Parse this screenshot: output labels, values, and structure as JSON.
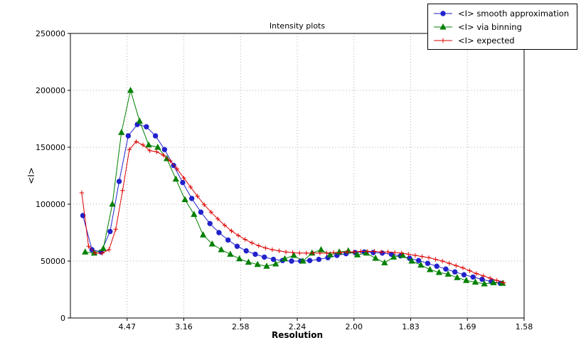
{
  "chart_data": {
    "type": "line",
    "title": "Intensity plots",
    "xlabel": "Resolution",
    "ylabel": "<I>",
    "grid": true,
    "grid_color": "#b0b0b0",
    "legend_position": "top-right",
    "xlim": [
      0.0,
      0.4
    ],
    "ylim": [
      0,
      250000
    ],
    "x_axis_note": "ticks linear in 1/d^2, labels are resolution d in Angstrom",
    "x_ticks": [
      {
        "pos": 0.05,
        "label": "4.47"
      },
      {
        "pos": 0.1,
        "label": "3.16"
      },
      {
        "pos": 0.15,
        "label": "2.58"
      },
      {
        "pos": 0.2,
        "label": "2.24"
      },
      {
        "pos": 0.25,
        "label": "2.00"
      },
      {
        "pos": 0.3,
        "label": "1.83"
      },
      {
        "pos": 0.35,
        "label": "1.69"
      },
      {
        "pos": 0.4,
        "label": "1.58"
      }
    ],
    "y_ticks": [
      {
        "value": 0,
        "label": "0"
      },
      {
        "value": 50000,
        "label": "50000"
      },
      {
        "value": 100000,
        "label": "100000"
      },
      {
        "value": 150000,
        "label": "150000"
      },
      {
        "value": 200000,
        "label": "200000"
      },
      {
        "value": 250000,
        "label": "250000"
      }
    ],
    "series": [
      {
        "name": "<I> smooth approximation",
        "color": "#2222cc",
        "marker": "circle",
        "x": [
          0.011,
          0.019,
          0.027,
          0.035,
          0.043,
          0.051,
          0.059,
          0.067,
          0.075,
          0.083,
          0.091,
          0.099,
          0.107,
          0.115,
          0.123,
          0.131,
          0.139,
          0.147,
          0.155,
          0.163,
          0.171,
          0.179,
          0.187,
          0.195,
          0.203,
          0.211,
          0.219,
          0.227,
          0.235,
          0.243,
          0.251,
          0.259,
          0.267,
          0.275,
          0.283,
          0.291,
          0.299,
          0.307,
          0.315,
          0.323,
          0.331,
          0.339,
          0.347,
          0.355,
          0.363,
          0.371,
          0.379
        ],
        "values": [
          90000,
          60000,
          58000,
          76000,
          120000,
          160000,
          170000,
          168000,
          160000,
          148000,
          134000,
          119000,
          105000,
          93000,
          83000,
          75000,
          68500,
          63000,
          59000,
          56000,
          53500,
          51500,
          50500,
          50000,
          50000,
          50500,
          51500,
          53000,
          55000,
          56500,
          57500,
          58000,
          57500,
          57000,
          56000,
          54500,
          52500,
          50500,
          48000,
          45500,
          43000,
          40500,
          38000,
          36000,
          34000,
          32000,
          30500
        ]
      },
      {
        "name": "<I> via binning",
        "color": "#008000",
        "marker": "triangle-up",
        "x": [
          0.013,
          0.021,
          0.029,
          0.037,
          0.045,
          0.053,
          0.061,
          0.069,
          0.077,
          0.085,
          0.093,
          0.101,
          0.109,
          0.117,
          0.125,
          0.133,
          0.141,
          0.149,
          0.157,
          0.165,
          0.173,
          0.181,
          0.189,
          0.197,
          0.205,
          0.213,
          0.221,
          0.229,
          0.237,
          0.245,
          0.253,
          0.261,
          0.269,
          0.277,
          0.285,
          0.293,
          0.301,
          0.309,
          0.317,
          0.325,
          0.333,
          0.341,
          0.349,
          0.357,
          0.365,
          0.373,
          0.381
        ],
        "values": [
          58000,
          57000,
          61000,
          100000,
          163000,
          200000,
          173000,
          152000,
          150000,
          140000,
          122000,
          104000,
          91000,
          73000,
          65000,
          60000,
          56000,
          52000,
          49000,
          47000,
          45500,
          47500,
          52000,
          55000,
          50000,
          57000,
          60000,
          55500,
          58000,
          59000,
          55500,
          57000,
          52500,
          48500,
          53500,
          55000,
          50000,
          46500,
          42500,
          40000,
          38500,
          35500,
          33000,
          31500,
          30000,
          31000,
          30500
        ]
      },
      {
        "name": "<I> expected",
        "color": "#dd0000",
        "marker": "plus",
        "x": [
          0.01,
          0.016,
          0.022,
          0.028,
          0.034,
          0.04,
          0.046,
          0.052,
          0.058,
          0.064,
          0.07,
          0.076,
          0.082,
          0.088,
          0.094,
          0.1,
          0.106,
          0.112,
          0.118,
          0.124,
          0.13,
          0.136,
          0.142,
          0.148,
          0.154,
          0.16,
          0.166,
          0.172,
          0.178,
          0.184,
          0.19,
          0.196,
          0.202,
          0.208,
          0.214,
          0.22,
          0.226,
          0.232,
          0.238,
          0.244,
          0.25,
          0.256,
          0.262,
          0.268,
          0.274,
          0.28,
          0.286,
          0.292,
          0.298,
          0.304,
          0.31,
          0.316,
          0.322,
          0.328,
          0.334,
          0.34,
          0.346,
          0.352,
          0.358,
          0.364,
          0.37,
          0.376,
          0.382
        ],
        "values": [
          110000,
          63000,
          57000,
          57000,
          60000,
          78000,
          112000,
          148000,
          155000,
          152000,
          147000,
          146000,
          143000,
          138000,
          131000,
          123000,
          115000,
          107000,
          99500,
          93000,
          87000,
          81500,
          76500,
          72500,
          69000,
          66000,
          63500,
          61500,
          60000,
          59000,
          58000,
          57500,
          57000,
          57000,
          57000,
          57000,
          57000,
          57500,
          57500,
          58000,
          58000,
          58500,
          58500,
          58500,
          58000,
          58000,
          57500,
          57000,
          56000,
          55000,
          54000,
          53000,
          51500,
          50000,
          48000,
          46000,
          44000,
          41500,
          39000,
          37000,
          35000,
          33000,
          31000
        ]
      }
    ]
  }
}
